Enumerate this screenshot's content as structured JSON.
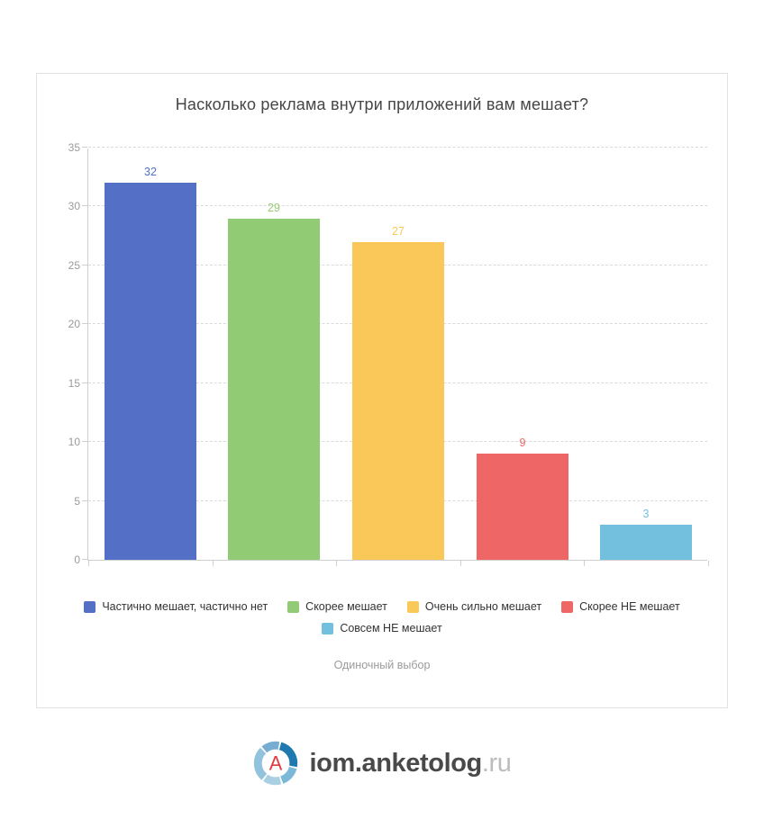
{
  "chart_data": {
    "type": "bar",
    "title": "Насколько реклама внутри приложений вам мешает?",
    "annotation": "Одиночный выбор",
    "categories": [
      "Частично мешает, частично нет",
      "Скорее мешает",
      "Очень сильно мешает",
      "Скорее НЕ мешает",
      "Совсем НЕ мешает"
    ],
    "values": [
      32,
      29,
      27,
      9,
      3
    ],
    "colors": [
      "#5470c6",
      "#91cc75",
      "#fac858",
      "#ee6666",
      "#73c0de"
    ],
    "xlabel": "",
    "ylabel": "",
    "ylim": [
      0,
      35
    ],
    "ytick_step": 5,
    "grid": true,
    "legend_position": "bottom"
  },
  "footer": {
    "brand_primary": "iom.anketolog",
    "brand_suffix": ".ru",
    "logo_letter": "A",
    "logo_letter_color": "#e23b3f",
    "logo_ring_colors": [
      "#77add0",
      "#1d79b0",
      "#7cb8d8",
      "#a9cfe3",
      "#92c2dc"
    ]
  }
}
